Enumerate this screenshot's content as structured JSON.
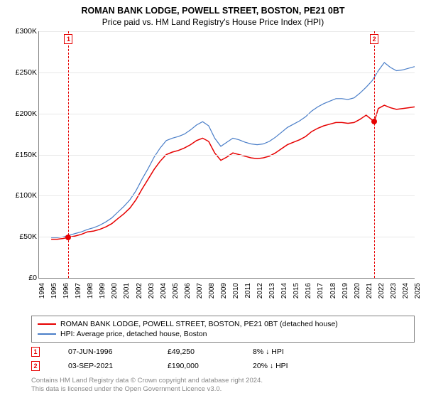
{
  "title_line1": "ROMAN BANK LODGE, POWELL STREET, BOSTON, PE21 0BT",
  "title_line2": "Price paid vs. HM Land Registry's House Price Index (HPI)",
  "chart": {
    "type": "line",
    "background_color": "#ffffff",
    "grid_color": "#e8e8e8",
    "axis_color": "#808080",
    "x_start_year": 1994,
    "x_end_year": 2025,
    "ylim": [
      0,
      300000
    ],
    "ytick_step": 50000,
    "y_labels": [
      "£0",
      "£50K",
      "£100K",
      "£150K",
      "£200K",
      "£250K",
      "£300K"
    ],
    "x_labels": [
      "1994",
      "1995",
      "1996",
      "1997",
      "1998",
      "1999",
      "2000",
      "2001",
      "2002",
      "2003",
      "2004",
      "2005",
      "2006",
      "2007",
      "2008",
      "2009",
      "2010",
      "2011",
      "2012",
      "2013",
      "2014",
      "2015",
      "2016",
      "2017",
      "2018",
      "2019",
      "2020",
      "2021",
      "2022",
      "2023",
      "2024",
      "2025"
    ],
    "series": [
      {
        "name": "property",
        "label": "ROMAN BANK LODGE, POWELL STREET, BOSTON, PE21 0BT (detached house)",
        "color": "#e60000",
        "line_width": 1.5,
        "points": [
          [
            1995.0,
            47000
          ],
          [
            1995.5,
            47000
          ],
          [
            1996.0,
            48000
          ],
          [
            1996.4,
            49250
          ],
          [
            1997.0,
            51000
          ],
          [
            1997.5,
            53000
          ],
          [
            1998.0,
            56000
          ],
          [
            1998.5,
            57000
          ],
          [
            1999.0,
            59000
          ],
          [
            1999.5,
            62000
          ],
          [
            2000.0,
            66000
          ],
          [
            2000.5,
            72000
          ],
          [
            2001.0,
            78000
          ],
          [
            2001.5,
            85000
          ],
          [
            2002.0,
            95000
          ],
          [
            2002.5,
            108000
          ],
          [
            2003.0,
            120000
          ],
          [
            2003.5,
            132000
          ],
          [
            2004.0,
            142000
          ],
          [
            2004.5,
            150000
          ],
          [
            2005.0,
            153000
          ],
          [
            2005.5,
            155000
          ],
          [
            2006.0,
            158000
          ],
          [
            2006.5,
            162000
          ],
          [
            2007.0,
            167000
          ],
          [
            2007.5,
            170000
          ],
          [
            2008.0,
            166000
          ],
          [
            2008.5,
            152000
          ],
          [
            2009.0,
            143000
          ],
          [
            2009.5,
            147000
          ],
          [
            2010.0,
            152000
          ],
          [
            2010.5,
            150000
          ],
          [
            2011.0,
            148000
          ],
          [
            2011.5,
            146000
          ],
          [
            2012.0,
            145000
          ],
          [
            2012.5,
            146000
          ],
          [
            2013.0,
            148000
          ],
          [
            2013.5,
            152000
          ],
          [
            2014.0,
            157000
          ],
          [
            2014.5,
            162000
          ],
          [
            2015.0,
            165000
          ],
          [
            2015.5,
            168000
          ],
          [
            2016.0,
            172000
          ],
          [
            2016.5,
            178000
          ],
          [
            2017.0,
            182000
          ],
          [
            2017.5,
            185000
          ],
          [
            2018.0,
            187000
          ],
          [
            2018.5,
            189000
          ],
          [
            2019.0,
            189000
          ],
          [
            2019.5,
            188000
          ],
          [
            2020.0,
            189000
          ],
          [
            2020.5,
            193000
          ],
          [
            2021.0,
            198000
          ],
          [
            2021.67,
            190000
          ],
          [
            2022.0,
            206000
          ],
          [
            2022.5,
            210000
          ],
          [
            2023.0,
            207000
          ],
          [
            2023.5,
            205000
          ],
          [
            2024.0,
            206000
          ],
          [
            2024.5,
            207000
          ],
          [
            2025.0,
            208000
          ]
        ]
      },
      {
        "name": "hpi",
        "label": "HPI: Average price, detached house, Boston",
        "color": "#4a7ec8",
        "line_width": 1.2,
        "points": [
          [
            1995.0,
            49000
          ],
          [
            1995.5,
            49000
          ],
          [
            1996.0,
            50000
          ],
          [
            1996.5,
            52000
          ],
          [
            1997.0,
            54000
          ],
          [
            1997.5,
            56000
          ],
          [
            1998.0,
            59000
          ],
          [
            1998.5,
            61000
          ],
          [
            1999.0,
            64000
          ],
          [
            1999.5,
            68000
          ],
          [
            2000.0,
            73000
          ],
          [
            2000.5,
            80000
          ],
          [
            2001.0,
            87000
          ],
          [
            2001.5,
            95000
          ],
          [
            2002.0,
            106000
          ],
          [
            2002.5,
            120000
          ],
          [
            2003.0,
            133000
          ],
          [
            2003.5,
            147000
          ],
          [
            2004.0,
            158000
          ],
          [
            2004.5,
            167000
          ],
          [
            2005.0,
            170000
          ],
          [
            2005.5,
            172000
          ],
          [
            2006.0,
            175000
          ],
          [
            2006.5,
            180000
          ],
          [
            2007.0,
            186000
          ],
          [
            2007.5,
            190000
          ],
          [
            2008.0,
            185000
          ],
          [
            2008.5,
            170000
          ],
          [
            2009.0,
            160000
          ],
          [
            2009.5,
            165000
          ],
          [
            2010.0,
            170000
          ],
          [
            2010.5,
            168000
          ],
          [
            2011.0,
            165000
          ],
          [
            2011.5,
            163000
          ],
          [
            2012.0,
            162000
          ],
          [
            2012.5,
            163000
          ],
          [
            2013.0,
            166000
          ],
          [
            2013.5,
            171000
          ],
          [
            2014.0,
            177000
          ],
          [
            2014.5,
            183000
          ],
          [
            2015.0,
            187000
          ],
          [
            2015.5,
            191000
          ],
          [
            2016.0,
            196000
          ],
          [
            2016.5,
            203000
          ],
          [
            2017.0,
            208000
          ],
          [
            2017.5,
            212000
          ],
          [
            2018.0,
            215000
          ],
          [
            2018.5,
            218000
          ],
          [
            2019.0,
            218000
          ],
          [
            2019.5,
            217000
          ],
          [
            2020.0,
            219000
          ],
          [
            2020.5,
            225000
          ],
          [
            2021.0,
            232000
          ],
          [
            2021.5,
            240000
          ],
          [
            2022.0,
            252000
          ],
          [
            2022.5,
            262000
          ],
          [
            2023.0,
            256000
          ],
          [
            2023.5,
            252000
          ],
          [
            2024.0,
            253000
          ],
          [
            2024.5,
            255000
          ],
          [
            2025.0,
            257000
          ]
        ]
      }
    ],
    "markers": [
      {
        "n": "1",
        "x": 1996.43,
        "y": 49250,
        "color": "#e60000"
      },
      {
        "n": "2",
        "x": 2021.67,
        "y": 190000,
        "color": "#e60000"
      }
    ]
  },
  "legend": [
    {
      "color": "#e60000",
      "label": "ROMAN BANK LODGE, POWELL STREET, BOSTON, PE21 0BT (detached house)"
    },
    {
      "color": "#4a7ec8",
      "label": "HPI: Average price, detached house, Boston"
    }
  ],
  "sales": [
    {
      "n": "1",
      "color": "#e60000",
      "date": "07-JUN-1996",
      "price": "£49,250",
      "hpi": "8% ↓ HPI"
    },
    {
      "n": "2",
      "color": "#e60000",
      "date": "03-SEP-2021",
      "price": "£190,000",
      "hpi": "20% ↓ HPI"
    }
  ],
  "footnote_line1": "Contains HM Land Registry data © Crown copyright and database right 2024.",
  "footnote_line2": "This data is licensed under the Open Government Licence v3.0."
}
